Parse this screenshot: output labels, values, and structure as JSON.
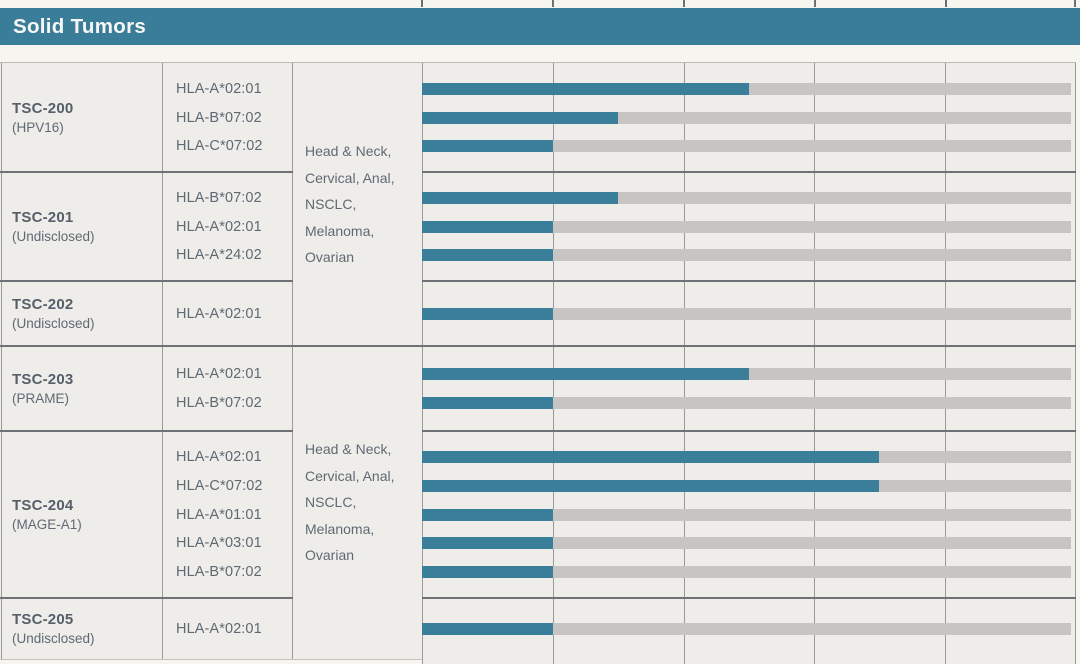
{
  "header": {
    "title": "Solid Tumors"
  },
  "colors": {
    "page_bg": "#f7f5f0",
    "table_bg": "#eeede9",
    "header_bg": "#3a7d98",
    "header_text": "#f6f6f4",
    "bar_fill": "#3a7e9a",
    "bar_track": "#c6c5c3",
    "grid_line": "#9b9a97",
    "section_border": "#6e7277",
    "text_primary": "#555f69",
    "text_secondary": "#5f6973"
  },
  "chart_data": {
    "type": "bar",
    "title": "Solid Tumors",
    "description": "Clinical pipeline table: each program section lists HLA-allele candidates with horizontal progress bars across 5 unlabeled development-phase columns; progress is the filled fraction of the full bar width.",
    "phase_columns": 5,
    "sections": [
      {
        "program": "TSC-200",
        "target": "(HPV16)",
        "rows": [
          {
            "hla": "HLA-A*02:01",
            "progress": 0.5
          },
          {
            "hla": "HLA-B*07:02",
            "progress": 0.3
          },
          {
            "hla": "HLA-C*07:02",
            "progress": 0.2
          }
        ]
      },
      {
        "program": "TSC-201",
        "target": "(Undisclosed)",
        "rows": [
          {
            "hla": "HLA-B*07:02",
            "progress": 0.3
          },
          {
            "hla": "HLA-A*02:01",
            "progress": 0.2
          },
          {
            "hla": "HLA-A*24:02",
            "progress": 0.2
          }
        ]
      },
      {
        "program": "TSC-202",
        "target": "(Undisclosed)",
        "rows": [
          {
            "hla": "HLA-A*02:01",
            "progress": 0.2
          }
        ]
      },
      {
        "program": "TSC-203",
        "target": "(PRAME)",
        "rows": [
          {
            "hla": "HLA-A*02:01",
            "progress": 0.5
          },
          {
            "hla": "HLA-B*07:02",
            "progress": 0.2
          }
        ]
      },
      {
        "program": "TSC-204",
        "target": "(MAGE-A1)",
        "rows": [
          {
            "hla": "HLA-A*02:01",
            "progress": 0.7
          },
          {
            "hla": "HLA-C*07:02",
            "progress": 0.7
          },
          {
            "hla": "HLA-A*01:01",
            "progress": 0.2
          },
          {
            "hla": "HLA-A*03:01",
            "progress": 0.2
          },
          {
            "hla": "HLA-B*07:02",
            "progress": 0.2
          }
        ]
      },
      {
        "program": "TSC-205",
        "target": "(Undisclosed)",
        "rows": [
          {
            "hla": "HLA-A*02:01",
            "progress": 0.2
          }
        ]
      }
    ],
    "indications": [
      {
        "lines": [
          "Head & Neck,",
          "Cervical, Anal,",
          "NSCLC,",
          "Melanoma,",
          "Ovarian"
        ],
        "spans_sections": [
          "TSC-200",
          "TSC-201",
          "TSC-202"
        ]
      },
      {
        "lines": [
          "Head & Neck,",
          "Cervical, Anal,",
          "NSCLC,",
          "Melanoma,",
          "Ovarian"
        ],
        "spans_sections": [
          "TSC-203",
          "TSC-204",
          "TSC-205"
        ]
      }
    ]
  }
}
